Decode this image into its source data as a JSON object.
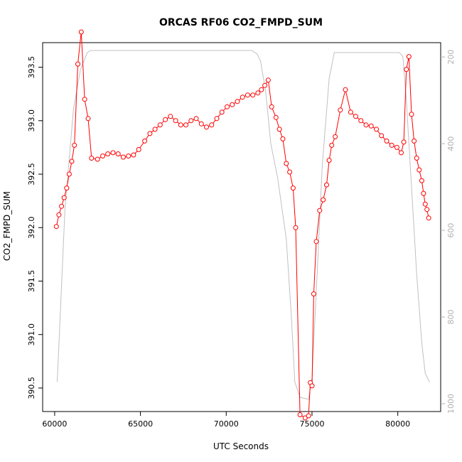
{
  "chart_data": {
    "type": "line",
    "title": "ORCAS RF06 CO2_FMPD_SUM",
    "xlabel": "UTC Seconds",
    "ylabel": "CO2_FMPD_SUM",
    "xlim": [
      59300,
      82500
    ],
    "ylim": [
      390.28,
      393.73
    ],
    "y2lim": [
      1018,
      167
    ],
    "x_ticks": [
      60000,
      65000,
      70000,
      75000,
      80000
    ],
    "y_ticks": [
      390.5,
      391.0,
      391.5,
      392.0,
      392.5,
      393.0,
      393.5
    ],
    "y_tick_labels": [
      "390.5",
      "391.0",
      "391.5",
      "392.0",
      "392.5",
      "393.0",
      "393.5"
    ],
    "y2_ticks": [
      200,
      400,
      600,
      800,
      1000
    ],
    "colors": {
      "co2": "#ff0000",
      "pressure": "#c0c0c0",
      "axis": "#000000",
      "right_axis": "#b0b0b0"
    },
    "series": [
      {
        "x": [
          60100,
          60250,
          60400,
          60550,
          60700,
          60850,
          61000,
          61150,
          61350,
          61550,
          61750,
          61950,
          62150,
          62500,
          62800,
          63100,
          63400,
          63700,
          64000,
          64300,
          64600,
          64900,
          65250,
          65550,
          65850,
          66150,
          66450,
          66750,
          67050,
          67350,
          67650,
          67950,
          68250,
          68550,
          68850,
          69150,
          69450,
          69750,
          70050,
          70350,
          70650,
          70950,
          71250,
          71550,
          71850,
          72050,
          72250,
          72450,
          72650,
          72900,
          73100,
          73300,
          73500,
          73700,
          73900,
          74050,
          74300,
          74600,
          74800,
          74900,
          75000,
          75100,
          75250,
          75450,
          75650,
          75850,
          76000,
          76150,
          76350,
          76650,
          76950,
          77250,
          77550,
          77850,
          78150,
          78450,
          78750,
          79050,
          79350,
          79650,
          79950,
          80200,
          80350,
          80500,
          80650,
          80800,
          80950,
          81100,
          81250,
          81400,
          81500,
          81600,
          81700,
          81800
        ],
        "values": [
          392.01,
          392.12,
          392.2,
          392.28,
          392.37,
          392.5,
          392.62,
          392.77,
          393.53,
          393.83,
          393.2,
          393.02,
          392.65,
          392.64,
          392.67,
          392.69,
          392.7,
          392.69,
          392.66,
          392.67,
          392.68,
          392.73,
          392.81,
          392.88,
          392.92,
          392.96,
          393.01,
          393.04,
          393.0,
          392.96,
          392.96,
          393.0,
          393.02,
          392.97,
          392.94,
          392.96,
          393.02,
          393.08,
          393.13,
          393.15,
          393.18,
          393.22,
          393.24,
          393.24,
          393.26,
          393.29,
          393.33,
          393.38,
          393.13,
          393.03,
          392.92,
          392.83,
          392.6,
          392.52,
          392.37,
          392.0,
          390.25,
          390.22,
          390.24,
          390.55,
          390.52,
          391.38,
          391.87,
          392.16,
          392.26,
          392.4,
          392.63,
          392.77,
          392.85,
          393.1,
          393.29,
          393.08,
          393.04,
          393.0,
          392.96,
          392.95,
          392.92,
          392.86,
          392.81,
          392.77,
          392.75,
          392.7,
          392.8,
          393.48,
          393.6,
          393.06,
          392.81,
          392.65,
          392.54,
          392.44,
          392.32,
          392.22,
          392.17,
          392.09
        ]
      },
      {
        "x": [
          60150,
          60300,
          60600,
          61100,
          61500,
          61900,
          62100,
          71500,
          71800,
          72000,
          72300,
          72600,
          73000,
          73500,
          73800,
          74000,
          74300,
          74800,
          75000,
          75300,
          75600,
          76000,
          76300,
          80100,
          80300,
          80500,
          80800,
          81100,
          81400,
          81600,
          81850
        ],
        "values": [
          950,
          820,
          550,
          320,
          230,
          190,
          185,
          185,
          193,
          210,
          280,
          400,
          480,
          620,
          800,
          950,
          985,
          990,
          940,
          700,
          450,
          250,
          190,
          190,
          200,
          300,
          500,
          700,
          860,
          930,
          950
        ]
      }
    ]
  }
}
